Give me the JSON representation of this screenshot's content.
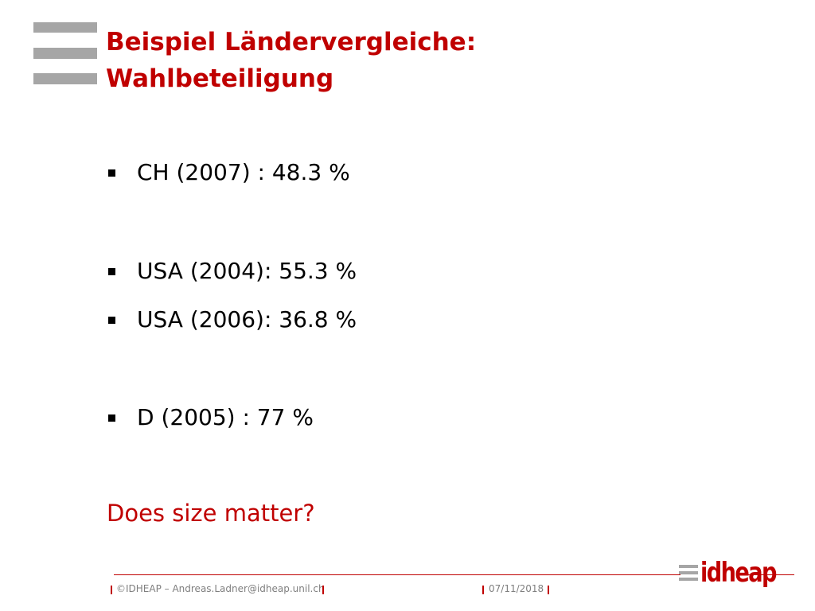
{
  "header": {
    "title_lines": [
      "Beispiel Ländervergleiche:",
      "Wahlbeteiligung"
    ]
  },
  "bullets": [
    "CH (2007) : 48.3 %",
    "USA (2004): 55.3 %",
    "USA (2006): 36.8 %",
    "D (2005) : 77 %"
  ],
  "question": "Does size matter?",
  "footer": {
    "copyright": "©IDHEAP – Andreas.Ladner@idheap.unil.ch",
    "date": "07/11/2018",
    "logo": "idheap"
  }
}
